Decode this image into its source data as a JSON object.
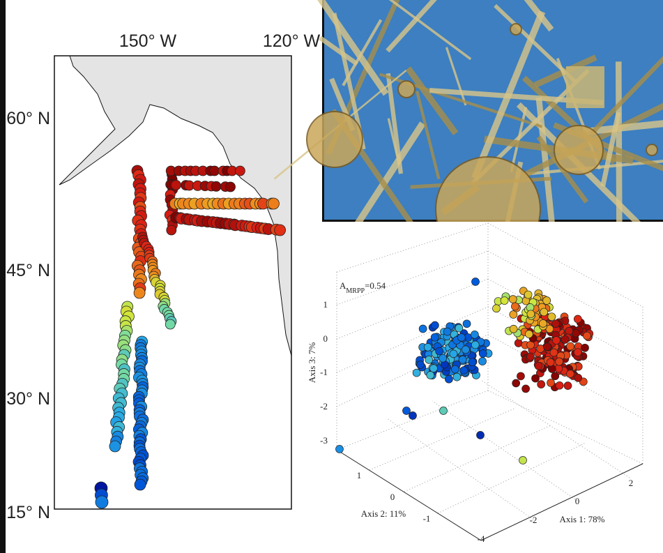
{
  "map": {
    "lon_labels": [
      "150° W",
      "120° W"
    ],
    "lat_labels": [
      "60° N",
      "45° N",
      "30° N",
      "15° N"
    ]
  },
  "scatter": {
    "annotation": {
      "base": "A",
      "subscript": "MRPP",
      "text": "=0.54"
    },
    "axis3": {
      "label": "Axis 3: 7%",
      "ticks": [
        "1",
        "0",
        "-1",
        "-2",
        "-3"
      ]
    },
    "axis2": {
      "label": "Axis 2: 11%",
      "ticks": [
        "1",
        "0",
        "-1"
      ]
    },
    "axis1": {
      "label": "Axis 1: 78%",
      "ticks": [
        "-4",
        "-2",
        "0",
        "2"
      ]
    }
  }
}
